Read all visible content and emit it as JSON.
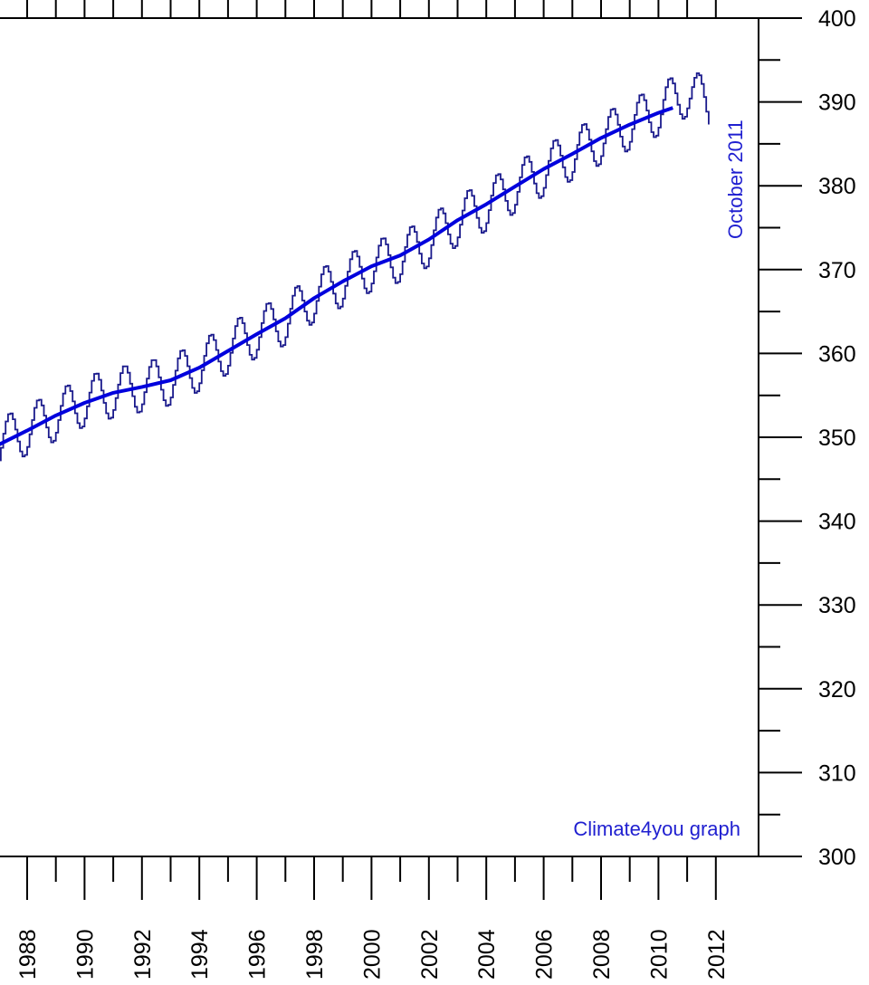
{
  "chart_data": {
    "type": "line",
    "x_unit": "year",
    "xlim": [
      1986.0,
      2013.5
    ],
    "ylim": [
      300,
      400
    ],
    "x_ticks": [
      1988,
      1990,
      1992,
      1994,
      1996,
      1998,
      2000,
      2002,
      2004,
      2006,
      2008,
      2010,
      2012
    ],
    "x_tick_labels": [
      "1988",
      "1990",
      "1992",
      "1994",
      "1996",
      "1998",
      "2000",
      "2002",
      "2004",
      "2006",
      "2008",
      "2010",
      "2012"
    ],
    "y_ticks": [
      300,
      310,
      320,
      330,
      340,
      350,
      360,
      370,
      380,
      390,
      400
    ],
    "y_tick_labels": [
      "300",
      "310",
      "320",
      "330",
      "340",
      "350",
      "360",
      "370",
      "380",
      "390",
      "400"
    ],
    "annotations": {
      "date": "October 2011",
      "credit": "Climate4you graph"
    },
    "colors": {
      "monthly": "#1a1a8c",
      "trend": "#0000dd",
      "annotation": "#1f1fd0",
      "axis": "#000000"
    },
    "series": [
      {
        "style": "monthly",
        "seasonal_amplitude": 3.0,
        "x": [
          1986.0,
          1987.0,
          1988.0,
          1989.0,
          1990.0,
          1991.0,
          1992.0,
          1993.0,
          1994.0,
          1995.0,
          1996.0,
          1997.0,
          1998.0,
          1999.0,
          2000.0,
          2001.0,
          2002.0,
          2003.0,
          2004.0,
          2005.0,
          2006.0,
          2007.0,
          2008.0,
          2009.0,
          2010.0,
          2011.0,
          2011.75
        ],
        "y": [
          348.6,
          349.3,
          350.9,
          352.6,
          354.3,
          355.3,
          356.0,
          356.8,
          358.5,
          360.6,
          362.5,
          364.0,
          366.8,
          368.6,
          370.4,
          371.5,
          373.4,
          375.9,
          377.6,
          379.8,
          381.8,
          383.7,
          385.6,
          387.3,
          389.0,
          391.3,
          389.5
        ]
      },
      {
        "style": "trend",
        "x": [
          1986.0,
          1987.0,
          1988.0,
          1989.0,
          1990.0,
          1991.0,
          1992.0,
          1993.0,
          1994.0,
          1995.0,
          1996.0,
          1997.0,
          1998.0,
          1999.0,
          2000.0,
          2001.0,
          2002.0,
          2003.0,
          2004.0,
          2005.0,
          2006.0,
          2007.0,
          2008.0,
          2009.0,
          2010.0,
          2010.5
        ],
        "y": [
          348.6,
          349.1,
          350.8,
          352.6,
          354.1,
          355.3,
          356.0,
          356.8,
          358.3,
          360.3,
          362.3,
          364.2,
          366.6,
          368.6,
          370.4,
          371.7,
          373.6,
          375.9,
          377.8,
          379.9,
          382.0,
          383.8,
          385.7,
          387.3,
          388.7,
          389.3
        ]
      }
    ]
  }
}
